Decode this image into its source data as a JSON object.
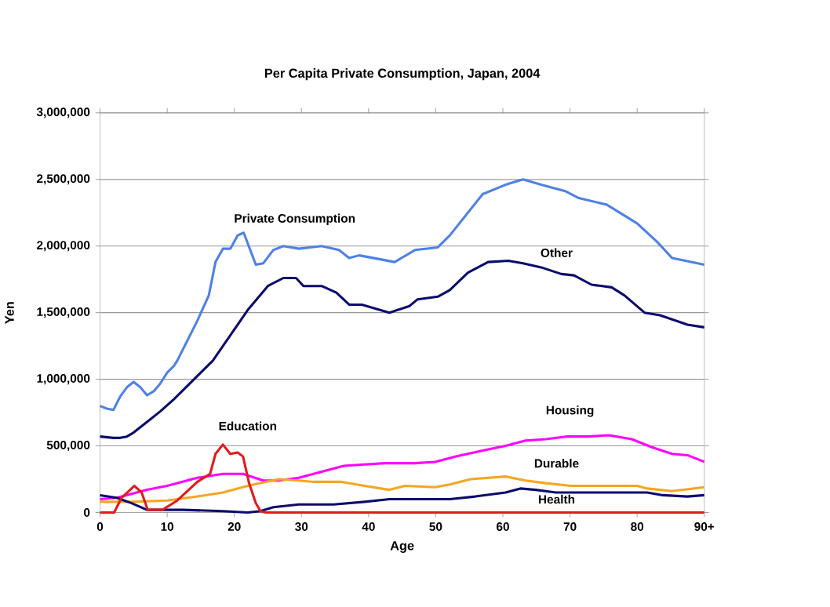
{
  "chart_data": {
    "type": "line",
    "title": "Per Capita Private Consumption, Japan, 2004",
    "xlabel": "Age",
    "ylabel": "Yen",
    "xlim": [
      0,
      90
    ],
    "ylim": [
      0,
      3000000
    ],
    "xticks": [
      0,
      10,
      20,
      30,
      40,
      50,
      60,
      70,
      80,
      {
        "value": 90,
        "label": "90+"
      }
    ],
    "yticks": [
      {
        "value": 0,
        "label": "0"
      },
      {
        "value": 500000,
        "label": "500,000"
      },
      {
        "value": 1000000,
        "label": "1,000,000"
      },
      {
        "value": 1500000,
        "label": "1,500,000"
      },
      {
        "value": 2000000,
        "label": "2,000,000"
      },
      {
        "value": 2500000,
        "label": "2,500,000"
      },
      {
        "value": 3000000,
        "label": "3,000,000"
      }
    ],
    "grid": "y",
    "legend": false,
    "marker": "none",
    "line_style": "solid",
    "series": [
      {
        "name": "Private Consumption",
        "color": "#4f81e6",
        "x": [
          0,
          1,
          2,
          3,
          4,
          5,
          6,
          7,
          8,
          9,
          10,
          11,
          11.5,
          14.5,
          16.2,
          17.2,
          18.3,
          19.4,
          20.5,
          21.4,
          23.2,
          24.3,
          25.8,
          27.3,
          29.6,
          33,
          35.6,
          37.1,
          38.6,
          43.9,
          46.9,
          50.3,
          52.1,
          57,
          60.4,
          63,
          65.7,
          69.4,
          71.3,
          75.5,
          80,
          83,
          85.2,
          90
        ],
        "values": [
          800000,
          780000,
          770000,
          870000,
          940000,
          980000,
          940000,
          880000,
          910000,
          970000,
          1050000,
          1100000,
          1140000,
          1440000,
          1630000,
          1880000,
          1980000,
          1980000,
          2080000,
          2100000,
          1860000,
          1870000,
          1970000,
          2000000,
          1980000,
          2000000,
          1970000,
          1910000,
          1930000,
          1880000,
          1970000,
          1990000,
          2080000,
          2390000,
          2460000,
          2500000,
          2460000,
          2410000,
          2360000,
          2310000,
          2170000,
          2030000,
          1910000,
          1860000
        ]
      },
      {
        "name": "Other",
        "color": "#0b0b6e",
        "x": [
          0,
          2,
          3,
          4,
          5,
          7,
          9,
          11,
          13,
          15,
          16.8,
          19.4,
          22,
          25,
          27.3,
          29.2,
          30.3,
          33,
          35.2,
          37.1,
          39,
          43.1,
          46.1,
          47.3,
          50.3,
          52.1,
          54.8,
          57.8,
          60.8,
          63,
          65.7,
          68.7,
          70.6,
          73.2,
          76.2,
          78.1,
          81.1,
          83.4,
          85.2,
          87.5,
          90
        ],
        "values": [
          570000,
          560000,
          560000,
          570000,
          600000,
          680000,
          760000,
          850000,
          950000,
          1050000,
          1140000,
          1330000,
          1520000,
          1700000,
          1760000,
          1760000,
          1700000,
          1700000,
          1650000,
          1560000,
          1560000,
          1500000,
          1550000,
          1600000,
          1620000,
          1670000,
          1800000,
          1880000,
          1890000,
          1870000,
          1840000,
          1790000,
          1780000,
          1710000,
          1690000,
          1630000,
          1500000,
          1480000,
          1450000,
          1410000,
          1390000
        ]
      },
      {
        "name": "Housing",
        "color": "#ff00ff",
        "x": [
          0,
          2.5,
          7,
          10,
          14.5,
          18.3,
          21.3,
          24.3,
          26.6,
          29.6,
          31.8,
          36.3,
          39.4,
          42.4,
          46.9,
          49.9,
          52.9,
          57.4,
          60.4,
          63.4,
          66.4,
          69.4,
          72.5,
          75.8,
          79.2,
          82.2,
          85.2,
          87.5,
          90
        ],
        "values": [
          100000,
          110000,
          170000,
          200000,
          260000,
          290000,
          290000,
          240000,
          240000,
          260000,
          290000,
          350000,
          360000,
          370000,
          370000,
          380000,
          420000,
          470000,
          500000,
          540000,
          550000,
          570000,
          570000,
          580000,
          550000,
          490000,
          440000,
          430000,
          380000
        ]
      },
      {
        "name": "Durable",
        "color": "#f5a623",
        "x": [
          0,
          4.7,
          10,
          14.5,
          18.3,
          22,
          26.6,
          29.6,
          31.8,
          36,
          39.4,
          43.1,
          45.4,
          49.9,
          52.1,
          55.2,
          60.4,
          63.4,
          66.4,
          70.1,
          76.2,
          80,
          81.5,
          85.2,
          90
        ],
        "values": [
          80000,
          80000,
          90000,
          120000,
          150000,
          200000,
          250000,
          240000,
          230000,
          230000,
          200000,
          170000,
          200000,
          190000,
          210000,
          250000,
          270000,
          240000,
          220000,
          200000,
          200000,
          200000,
          180000,
          160000,
          190000
        ]
      },
      {
        "name": "Health",
        "color": "#0b0b6e",
        "x": [
          0,
          2.5,
          4.7,
          7,
          12.3,
          18.3,
          22,
          23.9,
          25.8,
          29.6,
          34.8,
          39.4,
          43.1,
          46.9,
          52.1,
          55.9,
          60.4,
          62.6,
          64.9,
          67.9,
          72.5,
          81.5,
          83.8,
          87.5,
          90
        ],
        "values": [
          130000,
          110000,
          70000,
          20000,
          20000,
          10000,
          0,
          10000,
          40000,
          60000,
          60000,
          80000,
          100000,
          100000,
          100000,
          120000,
          150000,
          180000,
          170000,
          150000,
          150000,
          150000,
          130000,
          120000,
          130000
        ]
      },
      {
        "name": "Education",
        "color": "#e31a1c",
        "x": [
          0,
          2.1,
          3.2,
          5.1,
          6.2,
          7.1,
          9.3,
          11.5,
          14.5,
          16.4,
          17.2,
          18.3,
          19.4,
          20.5,
          21.3,
          22.2,
          23.2,
          23.9,
          24.7,
          90
        ],
        "values": [
          0,
          0,
          110000,
          200000,
          150000,
          20000,
          20000,
          90000,
          230000,
          290000,
          440000,
          510000,
          440000,
          450000,
          420000,
          220000,
          70000,
          10000,
          0,
          0
        ]
      }
    ]
  }
}
